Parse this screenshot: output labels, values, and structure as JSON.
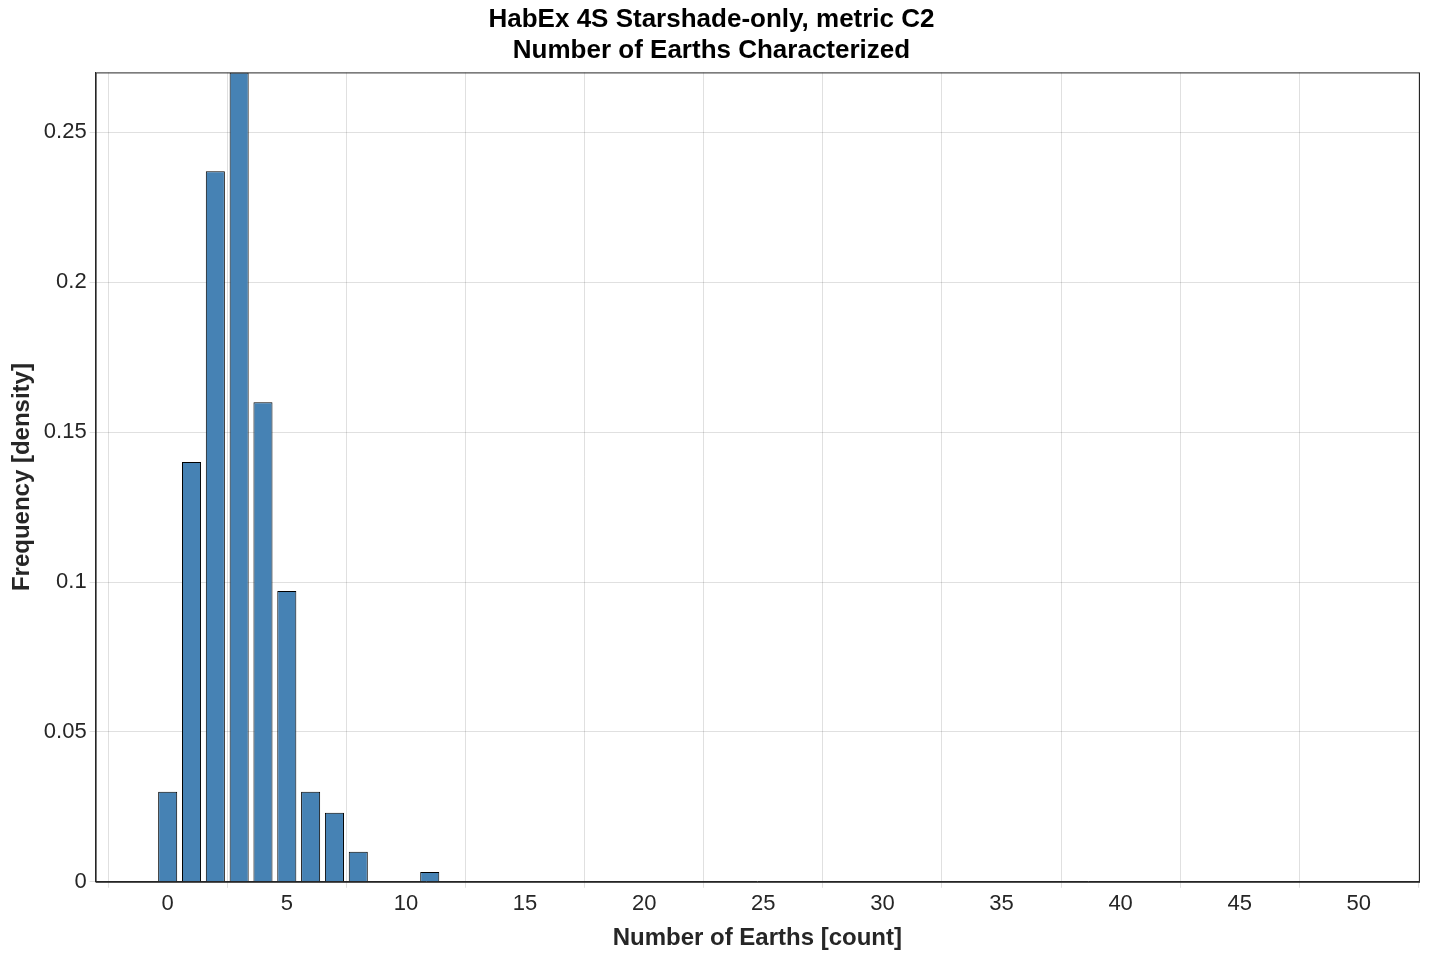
{
  "chart_data": {
    "type": "histogram",
    "title": [
      "HabEx 4S Starshade-only, metric C2",
      "Number of Earths Characterized"
    ],
    "x_label": "Number of Earths [count]",
    "y_label": "Frequency [density]",
    "bins": [
      -0.5,
      0.5,
      1.5,
      2.5,
      3.5,
      4.5,
      5.5,
      6.5,
      7.5,
      8.5,
      9.5,
      10.5,
      11.5
    ],
    "values": [
      0.03,
      0.14,
      0.237,
      0.27,
      0.16,
      0.097,
      0.03,
      0.023,
      0.01,
      0,
      0,
      0.0033
    ],
    "color": "#4682b4",
    "xlim": [
      -0.5,
      50
    ],
    "xticks": [
      0,
      5,
      10,
      15,
      20,
      25,
      30,
      35,
      40,
      45,
      50
    ],
    "ylim": [
      0,
      0.27
    ],
    "yticks": [
      0,
      0.05,
      0.1,
      0.15,
      0.2,
      0.25
    ],
    "grid": true
  }
}
